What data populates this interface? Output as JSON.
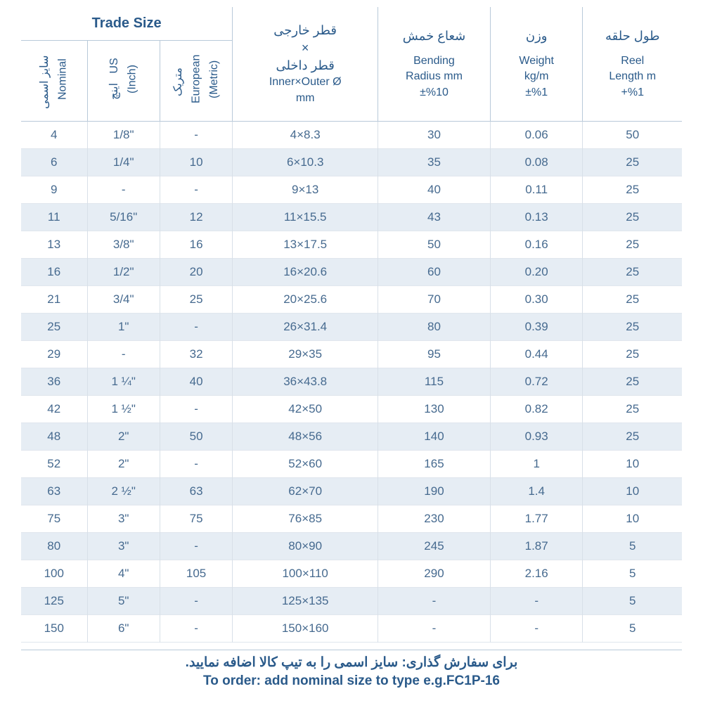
{
  "headers": {
    "trade_size": "Trade Size",
    "col1_fa": "سایز اسمی",
    "col1_en": "Nominal",
    "col2_fa": "اینچ",
    "col2_en": "US (Inch)",
    "col3_fa": "متریک",
    "col3_en": "European (Metric)",
    "col4_fa1": "قطر خارجی",
    "col4_x": "×",
    "col4_fa2": "قطر داخلی",
    "col4_en1": "Inner×Outer Ø",
    "col4_en2": "mm",
    "col5_fa": "شعاع خمش",
    "col5_en1": "Bending",
    "col5_en2": "Radius mm",
    "col5_en3": "±%10",
    "col6_fa": "وزن",
    "col6_en1": "Weight",
    "col6_en2": "kg/m",
    "col6_en3": "±%1",
    "col7_fa": "طول حلقه",
    "col7_en1": "Reel",
    "col7_en2": "Length m",
    "col7_en3": "+%1"
  },
  "rows": [
    {
      "c0": "4",
      "c1": "1/8\"",
      "c2": "-",
      "c3": "4×8.3",
      "c4": "30",
      "c5": "0.06",
      "c6": "50"
    },
    {
      "c0": "6",
      "c1": "1/4\"",
      "c2": "10",
      "c3": "6×10.3",
      "c4": "35",
      "c5": "0.08",
      "c6": "25"
    },
    {
      "c0": "9",
      "c1": "-",
      "c2": "-",
      "c3": "9×13",
      "c4": "40",
      "c5": "0.11",
      "c6": "25"
    },
    {
      "c0": "11",
      "c1": "5/16\"",
      "c2": "12",
      "c3": "11×15.5",
      "c4": "43",
      "c5": "0.13",
      "c6": "25"
    },
    {
      "c0": "13",
      "c1": "3/8\"",
      "c2": "16",
      "c3": "13×17.5",
      "c4": "50",
      "c5": "0.16",
      "c6": "25"
    },
    {
      "c0": "16",
      "c1": "1/2\"",
      "c2": "20",
      "c3": "16×20.6",
      "c4": "60",
      "c5": "0.20",
      "c6": "25"
    },
    {
      "c0": "21",
      "c1": "3/4\"",
      "c2": "25",
      "c3": "20×25.6",
      "c4": "70",
      "c5": "0.30",
      "c6": "25"
    },
    {
      "c0": "25",
      "c1": "1\"",
      "c2": "-",
      "c3": "26×31.4",
      "c4": "80",
      "c5": "0.39",
      "c6": "25"
    },
    {
      "c0": "29",
      "c1": "-",
      "c2": "32",
      "c3": "29×35",
      "c4": "95",
      "c5": "0.44",
      "c6": "25"
    },
    {
      "c0": "36",
      "c1": "1 ¼\"",
      "c2": "40",
      "c3": "36×43.8",
      "c4": "115",
      "c5": "0.72",
      "c6": "25"
    },
    {
      "c0": "42",
      "c1": "1 ½\"",
      "c2": "-",
      "c3": "42×50",
      "c4": "130",
      "c5": "0.82",
      "c6": "25"
    },
    {
      "c0": "48",
      "c1": "2\"",
      "c2": "50",
      "c3": "48×56",
      "c4": "140",
      "c5": "0.93",
      "c6": "25"
    },
    {
      "c0": "52",
      "c1": "2\"",
      "c2": "-",
      "c3": "52×60",
      "c4": "165",
      "c5": "1",
      "c6": "10"
    },
    {
      "c0": "63",
      "c1": "2 ½\"",
      "c2": "63",
      "c3": "62×70",
      "c4": "190",
      "c5": "1.4",
      "c6": "10"
    },
    {
      "c0": "75",
      "c1": "3\"",
      "c2": "75",
      "c3": "76×85",
      "c4": "230",
      "c5": "1.77",
      "c6": "10"
    },
    {
      "c0": "80",
      "c1": "3\"",
      "c2": "-",
      "c3": "80×90",
      "c4": "245",
      "c5": "1.87",
      "c6": "5"
    },
    {
      "c0": "100",
      "c1": "4\"",
      "c2": "105",
      "c3": "100×110",
      "c4": "290",
      "c5": "2.16",
      "c6": "5"
    },
    {
      "c0": "125",
      "c1": "5\"",
      "c2": "-",
      "c3": "125×135",
      "c4": "-",
      "c5": "-",
      "c6": "5"
    },
    {
      "c0": "150",
      "c1": "6\"",
      "c2": "-",
      "c3": "150×160",
      "c4": "-",
      "c5": "-",
      "c6": "5"
    }
  ],
  "footer": {
    "fa": "برای سفارش گذاری: سایز اسمی را به تیپ کالا اضافه نمایید.",
    "en": "To order: add nominal size to type e.g.FC1P-16"
  },
  "col_widths": [
    "10%",
    "11%",
    "11%",
    "22%",
    "17%",
    "14%",
    "15%"
  ]
}
